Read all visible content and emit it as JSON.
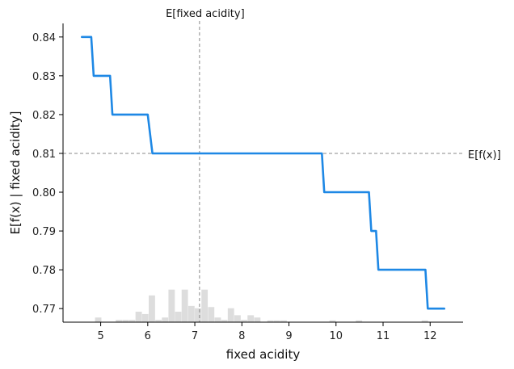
{
  "chart_data": {
    "type": "line",
    "xlabel": "fixed acidity",
    "ylabel": "E[f(x) | fixed acidity]",
    "xlim": [
      4.2,
      12.7
    ],
    "ylim": [
      0.7665,
      0.8435
    ],
    "xticks": [
      5,
      6,
      7,
      8,
      9,
      10,
      11,
      12
    ],
    "yticks": [
      0.77,
      0.78,
      0.79,
      0.8,
      0.81,
      0.82,
      0.83,
      0.84
    ],
    "ytick_labels": [
      "0.77",
      "0.78",
      "0.79",
      "0.80",
      "0.81",
      "0.82",
      "0.83",
      "0.84"
    ],
    "colors": {
      "line": "#1e88e5",
      "reference": "#888888",
      "histogram": "#dddddd",
      "axis": "#000000"
    },
    "series": [
      {
        "x": [
          4.6,
          4.8,
          4.85,
          5.2,
          5.25,
          6.0,
          6.1,
          9.7,
          9.75,
          10.7,
          10.75,
          10.85,
          10.9,
          11.9,
          11.95,
          12.3
        ],
        "y": [
          0.84,
          0.84,
          0.83,
          0.83,
          0.82,
          0.82,
          0.81,
          0.81,
          0.8,
          0.8,
          0.79,
          0.79,
          0.78,
          0.78,
          0.77,
          0.77
        ]
      }
    ],
    "reference_lines": {
      "expected_x": {
        "value": 7.1,
        "label": "E[fixed acidity]"
      },
      "expected_fx": {
        "value": 0.81,
        "label": "E[f(x)]"
      }
    },
    "histogram": {
      "bin_width": 0.14,
      "bins": [
        {
          "x": 4.88,
          "h": 0.8
        },
        {
          "x": 5.32,
          "h": 0.4
        },
        {
          "x": 5.46,
          "h": 0.4
        },
        {
          "x": 5.6,
          "h": 0.4
        },
        {
          "x": 5.74,
          "h": 1.8
        },
        {
          "x": 5.88,
          "h": 1.4
        },
        {
          "x": 6.02,
          "h": 4.6
        },
        {
          "x": 6.16,
          "h": 0.4
        },
        {
          "x": 6.3,
          "h": 0.8
        },
        {
          "x": 6.44,
          "h": 5.6
        },
        {
          "x": 6.58,
          "h": 1.8
        },
        {
          "x": 6.72,
          "h": 5.6
        },
        {
          "x": 6.86,
          "h": 2.8
        },
        {
          "x": 7.0,
          "h": 2.4
        },
        {
          "x": 7.14,
          "h": 5.6
        },
        {
          "x": 7.28,
          "h": 2.6
        },
        {
          "x": 7.42,
          "h": 0.8
        },
        {
          "x": 7.56,
          "h": 0.4
        },
        {
          "x": 7.7,
          "h": 2.4
        },
        {
          "x": 7.84,
          "h": 1.2
        },
        {
          "x": 7.98,
          "h": 0.4
        },
        {
          "x": 8.12,
          "h": 1.2
        },
        {
          "x": 8.26,
          "h": 0.8
        },
        {
          "x": 8.54,
          "h": 0.3
        },
        {
          "x": 8.68,
          "h": 0.3
        },
        {
          "x": 8.82,
          "h": 0.3
        },
        {
          "x": 9.86,
          "h": 0.3
        },
        {
          "x": 10.42,
          "h": 0.3
        },
        {
          "x": 11.82,
          "h": 0.3
        }
      ]
    }
  }
}
